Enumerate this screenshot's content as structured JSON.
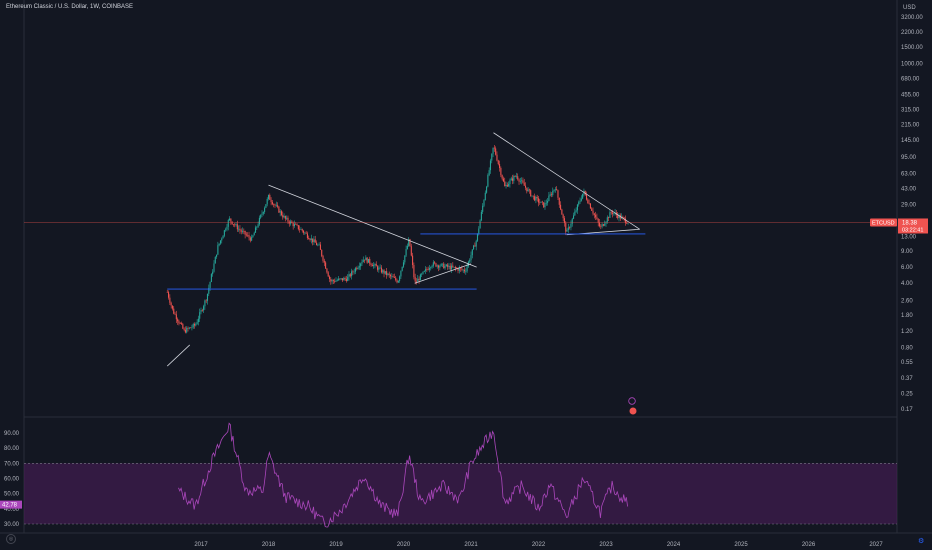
{
  "header": {
    "symbol_title": "Ethereum Classic / U.S. Dollar, 1W, COINBASE"
  },
  "price_axis": {
    "currency": "USD",
    "last_symbol": "ETCUSD",
    "last_price": "18.38",
    "countdown": "03:22:41"
  },
  "rsi_axis": {
    "last_value": "42.78"
  },
  "colors": {
    "background": "#131722",
    "up": "#26a69a",
    "down": "#ef5350",
    "trendline": "#d1d4dc",
    "support": "#2962ff",
    "rsi_line": "#ab47bc",
    "rsi_band": "#4a1d59",
    "last_price_line": "#ef5350"
  },
  "chart_data": [
    {
      "type": "candlestick",
      "title": "Ethereum Classic / U.S. Dollar, 1W, COINBASE",
      "y_scale": "log",
      "y_ticks": [
        "3200.00",
        "2200.00",
        "1500.00",
        "1000.00",
        "680.00",
        "455.00",
        "315.00",
        "215.00",
        "145.00",
        "95.00",
        "63.00",
        "43.00",
        "29.00",
        "19.00",
        "13.00",
        "9.00",
        "6.00",
        "4.00",
        "2.60",
        "1.80",
        "1.20",
        "0.80",
        "0.55",
        "0.37",
        "0.25",
        "0.17"
      ],
      "x_ticks": [
        "2017",
        "2018",
        "2019",
        "2020",
        "2021",
        "2022",
        "2023",
        "2024",
        "2025",
        "2026",
        "2027"
      ],
      "approx_price_path": [
        {
          "date": "2016-07",
          "price": 3.2
        },
        {
          "date": "2016-08",
          "price": 2.0
        },
        {
          "date": "2016-10",
          "price": 1.2
        },
        {
          "date": "2016-12",
          "price": 1.4
        },
        {
          "date": "2017-02",
          "price": 2.8
        },
        {
          "date": "2017-04",
          "price": 10
        },
        {
          "date": "2017-06",
          "price": 20
        },
        {
          "date": "2017-08",
          "price": 15
        },
        {
          "date": "2017-10",
          "price": 12
        },
        {
          "date": "2018-01",
          "price": 35
        },
        {
          "date": "2018-04",
          "price": 20
        },
        {
          "date": "2018-07",
          "price": 15
        },
        {
          "date": "2018-10",
          "price": 10
        },
        {
          "date": "2018-12",
          "price": 4.2
        },
        {
          "date": "2019-03",
          "price": 4.5
        },
        {
          "date": "2019-06",
          "price": 7.5
        },
        {
          "date": "2019-09",
          "price": 5.5
        },
        {
          "date": "2019-12",
          "price": 4.2
        },
        {
          "date": "2020-02",
          "price": 12
        },
        {
          "date": "2020-03",
          "price": 4.0
        },
        {
          "date": "2020-06",
          "price": 6.5
        },
        {
          "date": "2020-09",
          "price": 6.0
        },
        {
          "date": "2020-12",
          "price": 5.5
        },
        {
          "date": "2021-02",
          "price": 12
        },
        {
          "date": "2021-05",
          "price": 125
        },
        {
          "date": "2021-07",
          "price": 45
        },
        {
          "date": "2021-09",
          "price": 60
        },
        {
          "date": "2021-12",
          "price": 35
        },
        {
          "date": "2022-02",
          "price": 28
        },
        {
          "date": "2022-04",
          "price": 45
        },
        {
          "date": "2022-06",
          "price": 14
        },
        {
          "date": "2022-09",
          "price": 40
        },
        {
          "date": "2022-12",
          "price": 16
        },
        {
          "date": "2023-02",
          "price": 24
        },
        {
          "date": "2023-05",
          "price": 18.38
        }
      ],
      "drawings": [
        {
          "kind": "trendline",
          "from": {
            "date": "2018-01",
            "price": 47
          },
          "to": {
            "date": "2021-02",
            "price": 6
          }
        },
        {
          "kind": "trendline",
          "from": {
            "date": "2020-03",
            "price": 4.0
          },
          "to": {
            "date": "2021-01",
            "price": 6.5
          }
        },
        {
          "kind": "trendline",
          "from": {
            "date": "2016-07",
            "price": 0.5
          },
          "to": {
            "date": "2016-11",
            "price": 0.85
          }
        },
        {
          "kind": "trendline",
          "from": {
            "date": "2021-05",
            "price": 175
          },
          "to": {
            "date": "2023-07",
            "price": 15.5
          }
        },
        {
          "kind": "trendline",
          "from": {
            "date": "2022-06",
            "price": 13.5
          },
          "to": {
            "date": "2023-07",
            "price": 15.5
          }
        },
        {
          "kind": "hline",
          "price": 3.45,
          "from": "2016-07",
          "to": "2021-02"
        },
        {
          "kind": "hline",
          "price": 13.8,
          "from": "2020-04",
          "to": "2023-08"
        }
      ]
    },
    {
      "type": "line",
      "name": "RSI",
      "y_ticks": [
        "90.00",
        "80.00",
        "70.00",
        "60.00",
        "50.00",
        "40.00",
        "30.00"
      ],
      "bands": [
        70,
        30
      ],
      "approx_values": [
        {
          "date": "2016-09",
          "value": 52
        },
        {
          "date": "2016-12",
          "value": 42
        },
        {
          "date": "2017-03",
          "value": 72
        },
        {
          "date": "2017-06",
          "value": 95
        },
        {
          "date": "2017-09",
          "value": 52
        },
        {
          "date": "2017-12",
          "value": 52
        },
        {
          "date": "2018-01",
          "value": 76
        },
        {
          "date": "2018-04",
          "value": 48
        },
        {
          "date": "2018-08",
          "value": 42
        },
        {
          "date": "2018-11",
          "value": 30
        },
        {
          "date": "2019-02",
          "value": 40
        },
        {
          "date": "2019-06",
          "value": 62
        },
        {
          "date": "2019-09",
          "value": 42
        },
        {
          "date": "2019-12",
          "value": 36
        },
        {
          "date": "2020-02",
          "value": 76
        },
        {
          "date": "2020-04",
          "value": 44
        },
        {
          "date": "2020-08",
          "value": 55
        },
        {
          "date": "2020-11",
          "value": 46
        },
        {
          "date": "2021-01",
          "value": 70
        },
        {
          "date": "2021-05",
          "value": 92
        },
        {
          "date": "2021-07",
          "value": 44
        },
        {
          "date": "2021-10",
          "value": 55
        },
        {
          "date": "2022-01",
          "value": 40
        },
        {
          "date": "2022-03",
          "value": 56
        },
        {
          "date": "2022-06",
          "value": 35
        },
        {
          "date": "2022-09",
          "value": 60
        },
        {
          "date": "2022-12",
          "value": 38
        },
        {
          "date": "2023-02",
          "value": 55
        },
        {
          "date": "2023-05",
          "value": 42.78
        }
      ]
    }
  ]
}
